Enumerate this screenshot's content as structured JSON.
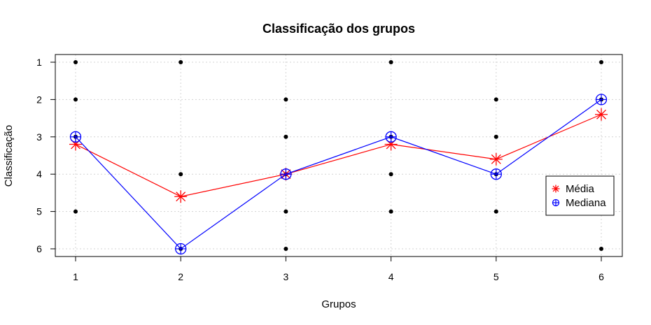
{
  "chart_data": {
    "type": "scatter",
    "title": "Classificação dos grupos",
    "xlabel": "Grupos",
    "ylabel": "Classificação",
    "xlim": [
      1,
      6
    ],
    "ylim": [
      6,
      1
    ],
    "y_reversed": true,
    "grid": true,
    "x_ticks": [
      "1",
      "2",
      "3",
      "4",
      "5",
      "6"
    ],
    "y_ticks": [
      "1",
      "2",
      "3",
      "4",
      "5",
      "6"
    ],
    "points": [
      {
        "x": 1,
        "y": [
          1,
          2,
          3,
          5
        ]
      },
      {
        "x": 2,
        "y": [
          1,
          4,
          6
        ]
      },
      {
        "x": 3,
        "y": [
          2,
          3,
          4,
          5,
          6
        ]
      },
      {
        "x": 4,
        "y": [
          1,
          3,
          4,
          5
        ]
      },
      {
        "x": 5,
        "y": [
          2,
          3,
          4,
          5
        ]
      },
      {
        "x": 6,
        "y": [
          1,
          2,
          6
        ]
      }
    ],
    "series": [
      {
        "name": "Média",
        "color": "#ff0000",
        "marker": "asterisk",
        "x": [
          1,
          2,
          3,
          4,
          5,
          6
        ],
        "values": [
          3.2,
          4.6,
          4.0,
          3.2,
          3.6,
          2.4
        ]
      },
      {
        "name": "Mediana",
        "color": "#0000ff",
        "marker": "circle-plus",
        "x": [
          1,
          2,
          3,
          4,
          5,
          6
        ],
        "values": [
          3,
          6,
          4,
          3,
          4,
          2
        ]
      }
    ],
    "legend_position": "right"
  }
}
